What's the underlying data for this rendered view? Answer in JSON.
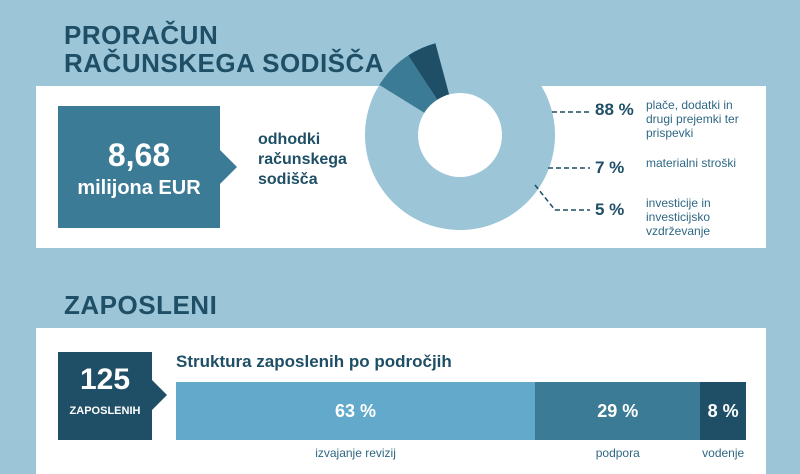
{
  "sections": {
    "budget_title_line1": "PRORAČUN",
    "budget_title_line2": "RAČUNSKEGA SODIŠČA",
    "employees_title": "ZAPOSLENI"
  },
  "budget": {
    "amount": "8,68",
    "unit": "milijona EUR",
    "description": "odhodki računskega sodišča"
  },
  "employees": {
    "count": "125",
    "unit": "ZAPOSLENIH",
    "structure_title": "Struktura zaposlenih po področjih"
  },
  "colors": {
    "dark": "#1f4f66",
    "mid": "#3c7b95",
    "light": "#9cc5d7",
    "bar_light": "#62a9cb"
  },
  "chart_data": [
    {
      "type": "pie",
      "title": "",
      "categories": [
        "plače, dodatki in drugi prejemki ter prispevki",
        "materialni stroški",
        "investicije in investicijsko vzdrževanje"
      ],
      "values": [
        88,
        7,
        5
      ],
      "value_labels": [
        "88 %",
        "7 %",
        "5 %"
      ]
    },
    {
      "type": "bar",
      "title": "Struktura zaposlenih po področjih",
      "categories": [
        "izvajanje revizij",
        "podpora",
        "vodenje"
      ],
      "values": [
        63,
        29,
        8
      ],
      "value_labels": [
        "63 %",
        "29 %",
        "8 %"
      ],
      "stacked": true
    }
  ]
}
